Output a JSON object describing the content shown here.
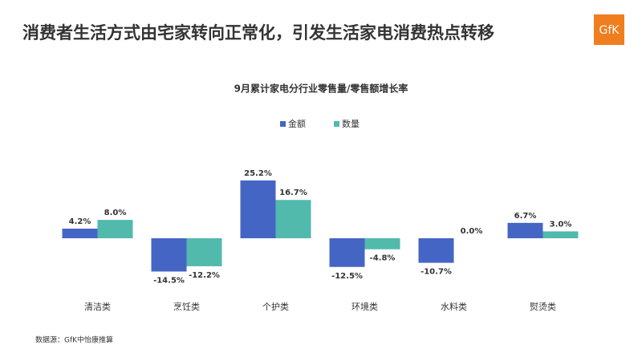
{
  "header": {
    "title": "消费者生活方式由宅家转向正常化，引发生活家电消费热点转移",
    "logo": "GfK"
  },
  "chart_data": {
    "type": "bar",
    "title": "9月累计家电分行业零售量/零售额增长率",
    "categories": [
      "清洁类",
      "烹饪类",
      "个护类",
      "环境类",
      "水料类",
      "熨烫类"
    ],
    "series": [
      {
        "name": "金额",
        "color": "#4565c5",
        "values": [
          4.2,
          -14.5,
          25.2,
          -12.5,
          -10.7,
          6.7
        ],
        "value_labels": [
          "4.2%",
          "-14.5%",
          "25.2%",
          "-12.5%",
          "-10.7%",
          "6.7%"
        ]
      },
      {
        "name": "数量",
        "color": "#52b9ad",
        "values": [
          8.0,
          -12.2,
          16.7,
          -4.8,
          0.0,
          3.0
        ],
        "value_labels": [
          "8.0%",
          "-12.2%",
          "16.7%",
          "-4.8%",
          "0.0%",
          "3.0%"
        ]
      }
    ],
    "legend": "top"
  },
  "footer": {
    "source": "数据源：GfK中怡康推算"
  }
}
